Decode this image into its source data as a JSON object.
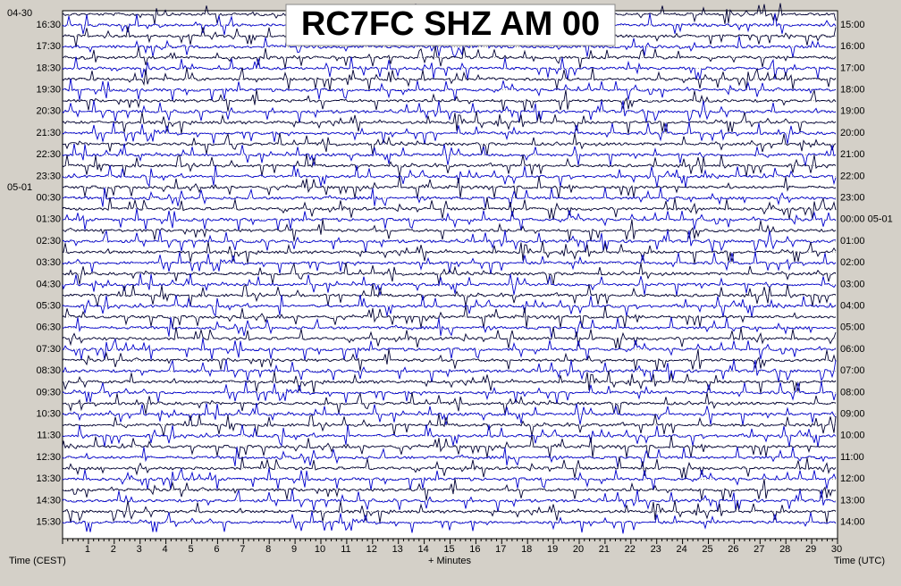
{
  "title": "RC7FC SHZ AM 00",
  "left_dates": [
    "04-30",
    "05-01"
  ],
  "left_times": [
    "16:30",
    "17:30",
    "18:30",
    "19:30",
    "20:30",
    "21:30",
    "22:30",
    "23:30",
    "00:30",
    "01:30",
    "02:30",
    "03:30",
    "04:30",
    "05:30",
    "06:30",
    "07:30",
    "08:30",
    "09:30",
    "10:30",
    "11:30",
    "12:30",
    "13:30",
    "14:30",
    "15:30"
  ],
  "right_times": [
    "15:00",
    "16:00",
    "17:00",
    "18:00",
    "19:00",
    "20:00",
    "21:00",
    "22:00",
    "23:00",
    "00:00 05-01",
    "01:00",
    "02:00",
    "03:00",
    "04:00",
    "05:00",
    "06:00",
    "07:00",
    "08:00",
    "09:00",
    "10:00",
    "11:00",
    "12:00",
    "13:00",
    "14:00"
  ],
  "minutes": [
    1,
    2,
    3,
    4,
    5,
    6,
    7,
    8,
    9,
    10,
    11,
    12,
    13,
    14,
    15,
    16,
    17,
    18,
    19,
    20,
    21,
    22,
    23,
    24,
    25,
    26,
    27,
    28,
    29,
    30
  ],
  "left_axis_label": "Time (CEST)",
  "x_axis_label": "+ Minutes",
  "right_axis_label": "Time (UTC)"
}
